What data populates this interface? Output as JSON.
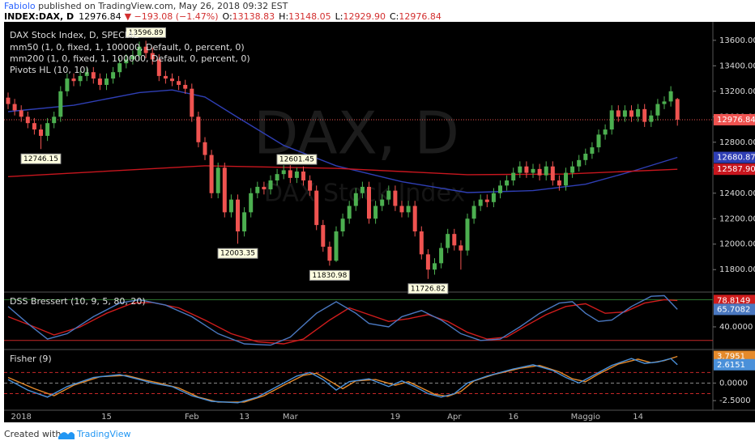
{
  "chart_data": {
    "type": "candlestick",
    "title": "DAX Stock Index, D, SPECIAL",
    "header": {
      "author": "Fabiolo",
      "published": "published on TradingView.com, May 26, 2018 09:32 EST",
      "symbol": "INDEX:DAX, D",
      "last": "12976.84",
      "change": "▼ −193.08 (−1.47%)",
      "quote": [
        {
          "label": "O:",
          "value": "13138.83"
        },
        {
          "label": "H:",
          "value": "13148.05"
        },
        {
          "label": "L:",
          "value": "12929.90"
        },
        {
          "label": "C:",
          "value": "12976.84"
        }
      ]
    },
    "watermark": [
      "DAX, D",
      "DAX Stock Index"
    ],
    "indicators": [
      "mm50 (1, 0, fixed, 1, 100000, Default, 0, percent, 0)",
      "mm200 (1, 0, fixed, 1, 100000, Default, 0, percent, 0)",
      "Pivots HL (10, 10)"
    ],
    "footer": {
      "created": "Created with",
      "brand": "TradingView"
    },
    "up_color": "#4caf50",
    "down_color": "#ef5350",
    "categories": [
      null,
      null,
      "2018",
      null,
      null,
      null,
      null,
      null,
      null,
      null,
      null,
      null,
      null,
      null,
      null,
      "15",
      null,
      null,
      null,
      null,
      null,
      null,
      null,
      null,
      null,
      null,
      null,
      null,
      "Feb",
      null,
      null,
      null,
      null,
      null,
      null,
      null,
      "13",
      null,
      null,
      null,
      null,
      null,
      null,
      "Mar",
      null,
      null,
      null,
      null,
      null,
      null,
      null,
      null,
      null,
      null,
      null,
      null,
      null,
      null,
      null,
      "19",
      null,
      null,
      null,
      null,
      null,
      null,
      null,
      null,
      "Apr",
      null,
      null,
      null,
      null,
      null,
      null,
      null,
      null,
      "16",
      null,
      null,
      null,
      null,
      null,
      null,
      null,
      null,
      null,
      null,
      "Maggio",
      null,
      null,
      null,
      null,
      null,
      null,
      null,
      "14",
      null,
      null,
      null,
      null,
      null,
      null
    ],
    "ohlc": [
      [
        13150,
        13190,
        13060,
        13100
      ],
      [
        13100,
        13140,
        13010,
        13050
      ],
      [
        13050,
        13090,
        12960,
        13000
      ],
      [
        13000,
        13040,
        12910,
        12950
      ],
      [
        12950,
        12990,
        12860,
        12900
      ],
      [
        12900,
        12940,
        12746.15,
        12850
      ],
      [
        12850,
        12990,
        12810,
        12950
      ],
      [
        12950,
        13040,
        12910,
        13000
      ],
      [
        13000,
        13240,
        12960,
        13200
      ],
      [
        13200,
        13340,
        13160,
        13300
      ],
      [
        13300,
        13340,
        13240,
        13280
      ],
      [
        13280,
        13360,
        13240,
        13320
      ],
      [
        13320,
        13390,
        13280,
        13350
      ],
      [
        13350,
        13390,
        13260,
        13300
      ],
      [
        13300,
        13340,
        13210,
        13250
      ],
      [
        13250,
        13340,
        13210,
        13300
      ],
      [
        13300,
        13390,
        13260,
        13350
      ],
      [
        13350,
        13460,
        13310,
        13420
      ],
      [
        13420,
        13490,
        13380,
        13450
      ],
      [
        13450,
        13520,
        13410,
        13480
      ],
      [
        13480,
        13590,
        13440,
        13550
      ],
      [
        13550,
        13596.89,
        13460,
        13500
      ],
      [
        13500,
        13540,
        13410,
        13450
      ],
      [
        13450,
        13490,
        13280,
        13320
      ],
      [
        13320,
        13360,
        13260,
        13300
      ],
      [
        13300,
        13340,
        13240,
        13280
      ],
      [
        13280,
        13320,
        13210,
        13250
      ],
      [
        13250,
        13290,
        13180,
        13220
      ],
      [
        13220,
        13260,
        12960,
        13000
      ],
      [
        13000,
        13040,
        12760,
        12800
      ],
      [
        12800,
        12840,
        12660,
        12700
      ],
      [
        12700,
        12740,
        12360,
        12400
      ],
      [
        12400,
        12640,
        12360,
        12600
      ],
      [
        12600,
        12640,
        12210,
        12250
      ],
      [
        12250,
        12390,
        12210,
        12350
      ],
      [
        12350,
        12390,
        12003.35,
        12100
      ],
      [
        12100,
        12290,
        12060,
        12250
      ],
      [
        12250,
        12440,
        12210,
        12400
      ],
      [
        12400,
        12490,
        12360,
        12450
      ],
      [
        12450,
        12490,
        12390,
        12430
      ],
      [
        12430,
        12540,
        12390,
        12500
      ],
      [
        12500,
        12590,
        12460,
        12550
      ],
      [
        12550,
        12620,
        12510,
        12580
      ],
      [
        12580,
        12620,
        12480,
        12520
      ],
      [
        12520,
        12601.45,
        12480,
        12570
      ],
      [
        12570,
        12610,
        12460,
        12500
      ],
      [
        12500,
        12540,
        12380,
        12420
      ],
      [
        12420,
        12460,
        12110,
        12150
      ],
      [
        12150,
        12190,
        11940,
        11980
      ],
      [
        11980,
        12020,
        11830.98,
        11870
      ],
      [
        11870,
        12140,
        11860,
        12100
      ],
      [
        12100,
        12240,
        12060,
        12200
      ],
      [
        12200,
        12340,
        12160,
        12300
      ],
      [
        12300,
        12440,
        12260,
        12400
      ],
      [
        12400,
        12490,
        12360,
        12450
      ],
      [
        12450,
        12490,
        12160,
        12200
      ],
      [
        12200,
        12340,
        12160,
        12300
      ],
      [
        12300,
        12390,
        12260,
        12350
      ],
      [
        12350,
        12460,
        12310,
        12420
      ],
      [
        12420,
        12460,
        12260,
        12300
      ],
      [
        12300,
        12340,
        12210,
        12250
      ],
      [
        12250,
        12340,
        12210,
        12300
      ],
      [
        12300,
        12340,
        12060,
        12100
      ],
      [
        12100,
        12140,
        11880,
        11920
      ],
      [
        11920,
        11960,
        11726.82,
        11800
      ],
      [
        11800,
        11890,
        11760,
        11850
      ],
      [
        11850,
        12010,
        11810,
        11970
      ],
      [
        11970,
        12120,
        11930,
        12080
      ],
      [
        12080,
        12120,
        11950,
        11990
      ],
      [
        11990,
        12030,
        11800,
        11950
      ],
      [
        11950,
        12240,
        11910,
        12200
      ],
      [
        12200,
        12340,
        12160,
        12300
      ],
      [
        12300,
        12390,
        12260,
        12350
      ],
      [
        12350,
        12390,
        12290,
        12330
      ],
      [
        12330,
        12440,
        12290,
        12400
      ],
      [
        12400,
        12500,
        12360,
        12460
      ],
      [
        12460,
        12540,
        12420,
        12500
      ],
      [
        12500,
        12600,
        12460,
        12560
      ],
      [
        12560,
        12650,
        12520,
        12610
      ],
      [
        12610,
        12650,
        12520,
        12560
      ],
      [
        12560,
        12630,
        12520,
        12590
      ],
      [
        12590,
        12630,
        12500,
        12540
      ],
      [
        12540,
        12650,
        12500,
        12610
      ],
      [
        12610,
        12650,
        12460,
        12500
      ],
      [
        12500,
        12540,
        12420,
        12460
      ],
      [
        12460,
        12600,
        12420,
        12560
      ],
      [
        12560,
        12650,
        12520,
        12610
      ],
      [
        12610,
        12700,
        12570,
        12660
      ],
      [
        12660,
        12750,
        12620,
        12710
      ],
      [
        12710,
        12800,
        12670,
        12760
      ],
      [
        12760,
        12900,
        12720,
        12860
      ],
      [
        12860,
        12940,
        12820,
        12900
      ],
      [
        12900,
        13090,
        12860,
        13050
      ],
      [
        13050,
        13090,
        12960,
        13000
      ],
      [
        13000,
        13090,
        12960,
        13050
      ],
      [
        13050,
        13090,
        12960,
        13000
      ],
      [
        13000,
        13100,
        12960,
        13060
      ],
      [
        13060,
        13100,
        12920,
        12960
      ],
      [
        12960,
        13050,
        12920,
        13010
      ],
      [
        13010,
        13140,
        12970,
        13100
      ],
      [
        13100,
        13160,
        13060,
        13120
      ],
      [
        13120,
        13240,
        13080,
        13200
      ],
      [
        13138.83,
        13148.05,
        12929.9,
        12976.84
      ]
    ],
    "ylim": [
      11630,
      13745
    ],
    "yticks": [
      {
        "value": 11800,
        "label": "11800.00"
      },
      {
        "value": 12000,
        "label": "12000.00"
      },
      {
        "value": 12200,
        "label": "12200.00"
      },
      {
        "value": 12400,
        "label": "12400.00"
      },
      {
        "value": 12600,
        "label": "12600.00"
      },
      {
        "value": 12800,
        "label": "12800.00"
      },
      {
        "value": 13000,
        "label": "13000.00"
      },
      {
        "value": 13200,
        "label": "13200.00"
      },
      {
        "value": 13400,
        "label": "13400.00"
      },
      {
        "value": 13600,
        "label": "13600.00"
      }
    ],
    "pivots": [
      {
        "x": 5,
        "value": 12746.15,
        "side": "low"
      },
      {
        "x": 21,
        "value": 13596.89,
        "side": "high"
      },
      {
        "x": 35,
        "value": 12003.35,
        "side": "low"
      },
      {
        "x": 44,
        "value": 12601.45,
        "side": "high"
      },
      {
        "x": 49,
        "value": 11830.98,
        "side": "low"
      },
      {
        "x": 64,
        "value": 11726.82,
        "side": "low"
      }
    ],
    "series": [
      {
        "name": "mm50",
        "color": "#2f3fb5",
        "x": [
          0,
          10,
          20,
          25,
          30,
          35,
          42,
          50,
          60,
          70,
          80,
          88,
          95,
          102
        ],
        "values": [
          13040,
          13090,
          13190,
          13210,
          13155,
          12995,
          12775,
          12615,
          12490,
          12405,
          12420,
          12470,
          12570,
          12680.87
        ]
      },
      {
        "name": "mm200",
        "color": "#c8161e",
        "x": [
          0,
          30,
          50,
          70,
          85,
          102
        ],
        "values": [
          12530,
          12615,
          12595,
          12545,
          12550,
          12587.9
        ],
        "last_label": "12587.90"
      }
    ],
    "panels": [
      {
        "type": "line",
        "title": "DSS Bressert (10, 9, 5, 80, 20)",
        "ylim": [
          9,
          90
        ],
        "yticks": [
          {
            "value": 40,
            "label": "40.0000"
          }
        ],
        "levels": [
          {
            "value": 80,
            "color": "#2e7d32",
            "dashed": false
          },
          {
            "value": 20,
            "color": "#c62828",
            "dashed": false
          }
        ],
        "series": [
          {
            "color": "#d01c1c",
            "x": [
              0,
              4,
              7,
              11,
              15,
              19,
              22,
              26,
              30,
              34,
              38,
              42,
              45,
              49,
              52,
              55,
              58,
              61,
              64,
              67,
              70,
              73,
              76,
              79,
              82,
              85,
              88,
              91,
              94,
              97,
              100,
              102
            ],
            "values": [
              55,
              40,
              28,
              40,
              60,
              75,
              76,
              68,
              50,
              30,
              18,
              15,
              22,
              50,
              68,
              58,
              48,
              52,
              58,
              48,
              32,
              22,
              25,
              42,
              58,
              70,
              74,
              60,
              62,
              75,
              80,
              78.8149
            ]
          },
          {
            "color": "#4a78c0",
            "x": [
              0,
              3,
              6,
              9,
              13,
              17,
              20,
              24,
              28,
              32,
              36,
              40,
              43,
              47,
              50,
              53,
              55,
              58,
              60,
              63,
              66,
              69,
              72,
              75,
              78,
              81,
              84,
              86,
              88,
              90,
              92,
              95,
              98,
              100,
              102
            ],
            "values": [
              70,
              45,
              22,
              30,
              55,
              75,
              80,
              72,
              55,
              30,
              15,
              13,
              25,
              60,
              77,
              60,
              45,
              40,
              55,
              64,
              50,
              30,
              20,
              22,
              40,
              60,
              75,
              77,
              60,
              48,
              50,
              70,
              85,
              86,
              65.7082
            ]
          }
        ]
      },
      {
        "type": "line",
        "title": "Fisher (9)",
        "ylim": [
          -3.75,
          4.66
        ],
        "yticks": [
          {
            "value": 0,
            "label": "0.0000"
          },
          {
            "value": -2.5,
            "label": "-2.5000"
          }
        ],
        "levels": [
          {
            "value": 1.5,
            "color": "#c62828",
            "dashed": true
          },
          {
            "value": 0,
            "color": "#888888",
            "dashed": true
          },
          {
            "value": -1.5,
            "color": "#c62828",
            "dashed": true
          }
        ],
        "series": [
          {
            "color": "#e58a2b",
            "x": [
              0,
              4,
              7,
              10,
              14,
              18,
              21,
              23,
              26,
              29,
              32,
              36,
              39,
              42,
              45,
              47,
              49,
              51,
              53,
              56,
              59,
              61,
              63,
              65,
              67,
              69,
              71,
              74,
              78,
              81,
              84,
              86,
              88,
              90,
              93,
              96,
              98,
              100,
              102
            ],
            "values": [
              0.8,
              -0.8,
              -1.8,
              -0.3,
              0.9,
              1.1,
              0.4,
              0,
              -0.7,
              -2,
              -2.7,
              -2.7,
              -1.8,
              -0.3,
              1.1,
              1.4,
              0.3,
              -0.8,
              0.3,
              0.5,
              -0.3,
              0.2,
              -0.7,
              -1.6,
              -1.9,
              -1.2,
              0.3,
              1.2,
              2.1,
              2.5,
              1.6,
              0.6,
              0.2,
              1.3,
              2.7,
              3.4,
              2.9,
              3.2,
              3.7951
            ]
          },
          {
            "color": "#4a90d9",
            "x": [
              0,
              3,
              6,
              9,
              13,
              17,
              20,
              22,
              25,
              28,
              31,
              35,
              38,
              41,
              44,
              46,
              48,
              50,
              52,
              55,
              58,
              60,
              62,
              64,
              66,
              68,
              70,
              73,
              77,
              80,
              83,
              85,
              87,
              89,
              92,
              95,
              97,
              99,
              101,
              102
            ],
            "values": [
              0.5,
              -1,
              -2,
              -0.5,
              0.8,
              1.2,
              0.5,
              0,
              -0.5,
              -1.8,
              -2.6,
              -2.8,
              -2,
              -0.5,
              1,
              1.5,
              0.5,
              -1,
              0.2,
              0.6,
              -0.5,
              0.3,
              -0.5,
              -1.5,
              -2,
              -1.5,
              0,
              1,
              2,
              2.6,
              1.8,
              0.8,
              0,
              1,
              2.5,
              3.5,
              2.8,
              3,
              3.5,
              2.6151
            ]
          }
        ]
      }
    ]
  }
}
